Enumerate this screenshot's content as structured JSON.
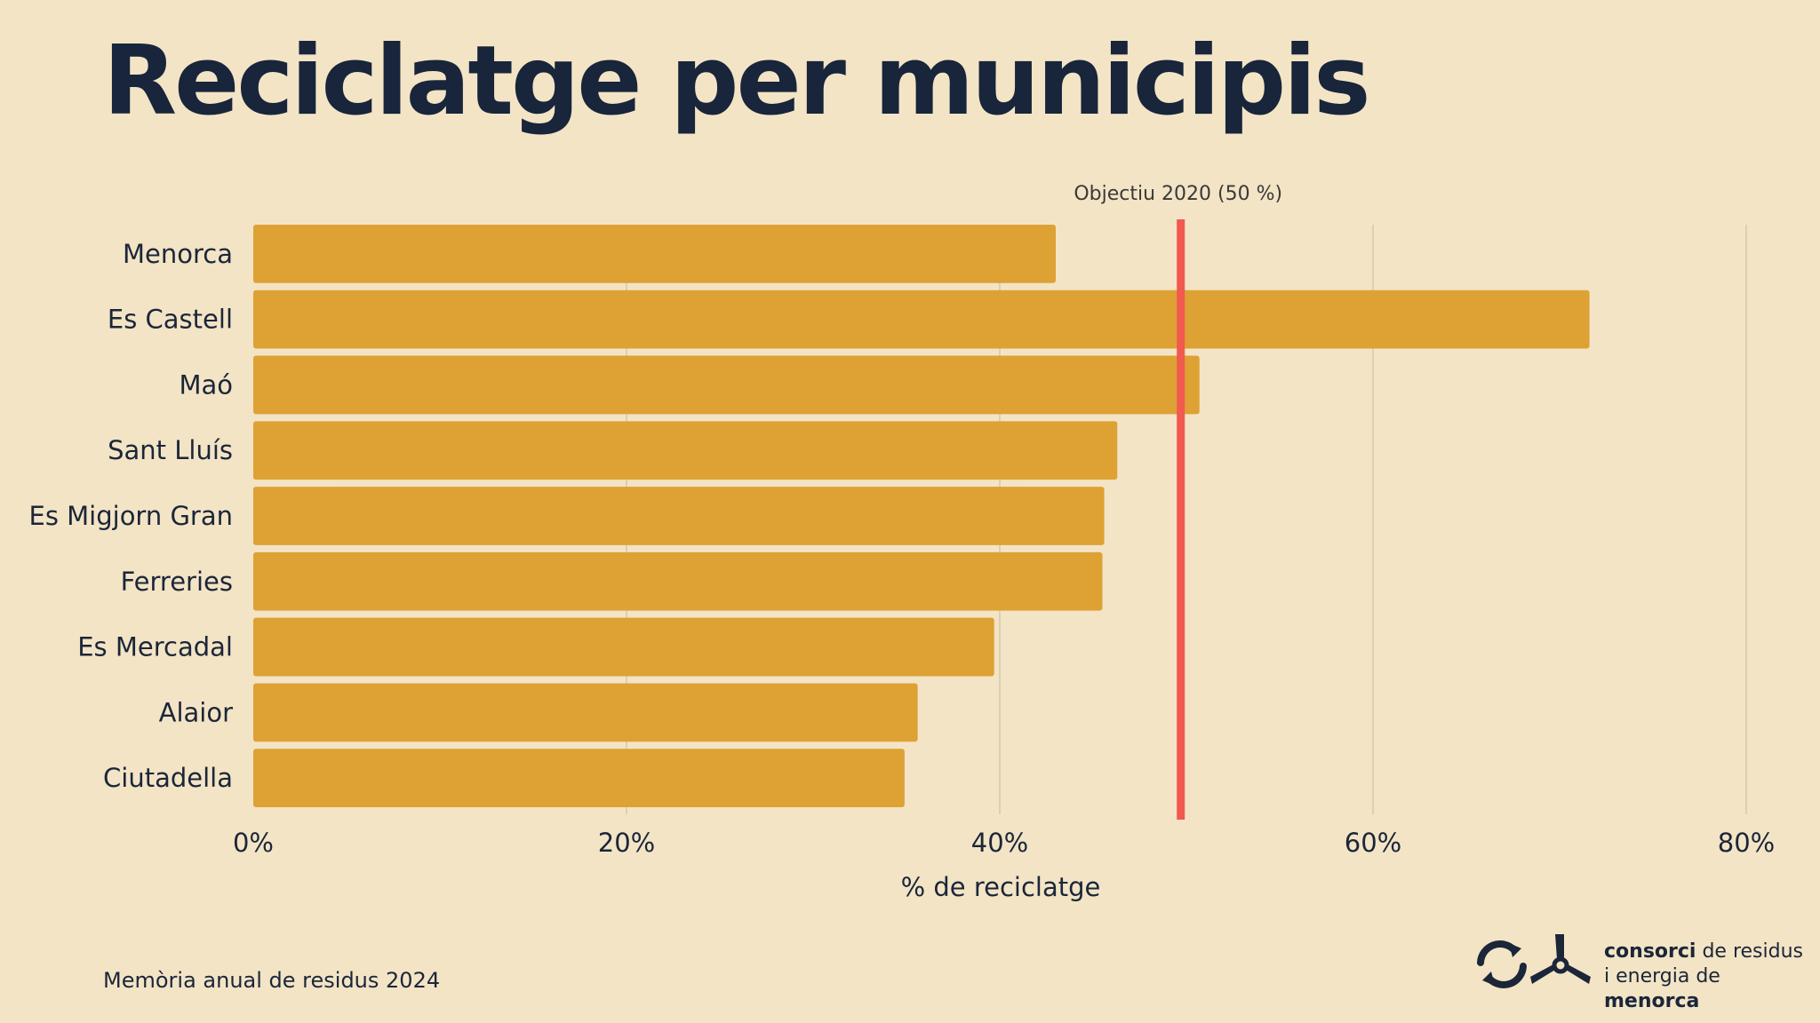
{
  "title": "Reciclatge per municipis",
  "source": "Memòria anual de residus 2024",
  "logo": {
    "line1_bold": "consorci",
    "line1_rest": " de residus",
    "line2_rest": "i energia de ",
    "line2_bold": "menorca",
    "icons": [
      "recycle-arrows-icon",
      "wind-turbine-icon"
    ]
  },
  "colors": {
    "background": "#f3e4c6",
    "bar": "#dea134",
    "target_line": "#f05a4f",
    "grid": "#dccfb3",
    "text": "#1b2638"
  },
  "chart_data": {
    "type": "bar",
    "orientation": "horizontal",
    "categories": [
      "Menorca",
      "Es Castell",
      "Maó",
      "Sant Lluís",
      "Es Migjorn Gran",
      "Ferreries",
      "Es Mercadal",
      "Alaior",
      "Ciutadella"
    ],
    "values": [
      43.0,
      71.6,
      50.7,
      46.3,
      45.6,
      45.5,
      39.7,
      35.6,
      34.9
    ],
    "xlabel": "% de reciclatge",
    "ylabel": "",
    "xlim": [
      0,
      80
    ],
    "x_ticks": [
      0,
      20,
      40,
      60,
      80
    ],
    "x_tick_labels": [
      "0%",
      "20%",
      "40%",
      "60%",
      "80%"
    ],
    "grid": "vertical",
    "reference_line": {
      "value": 49.7,
      "label": "Objectiu 2020 (50 %)"
    }
  }
}
